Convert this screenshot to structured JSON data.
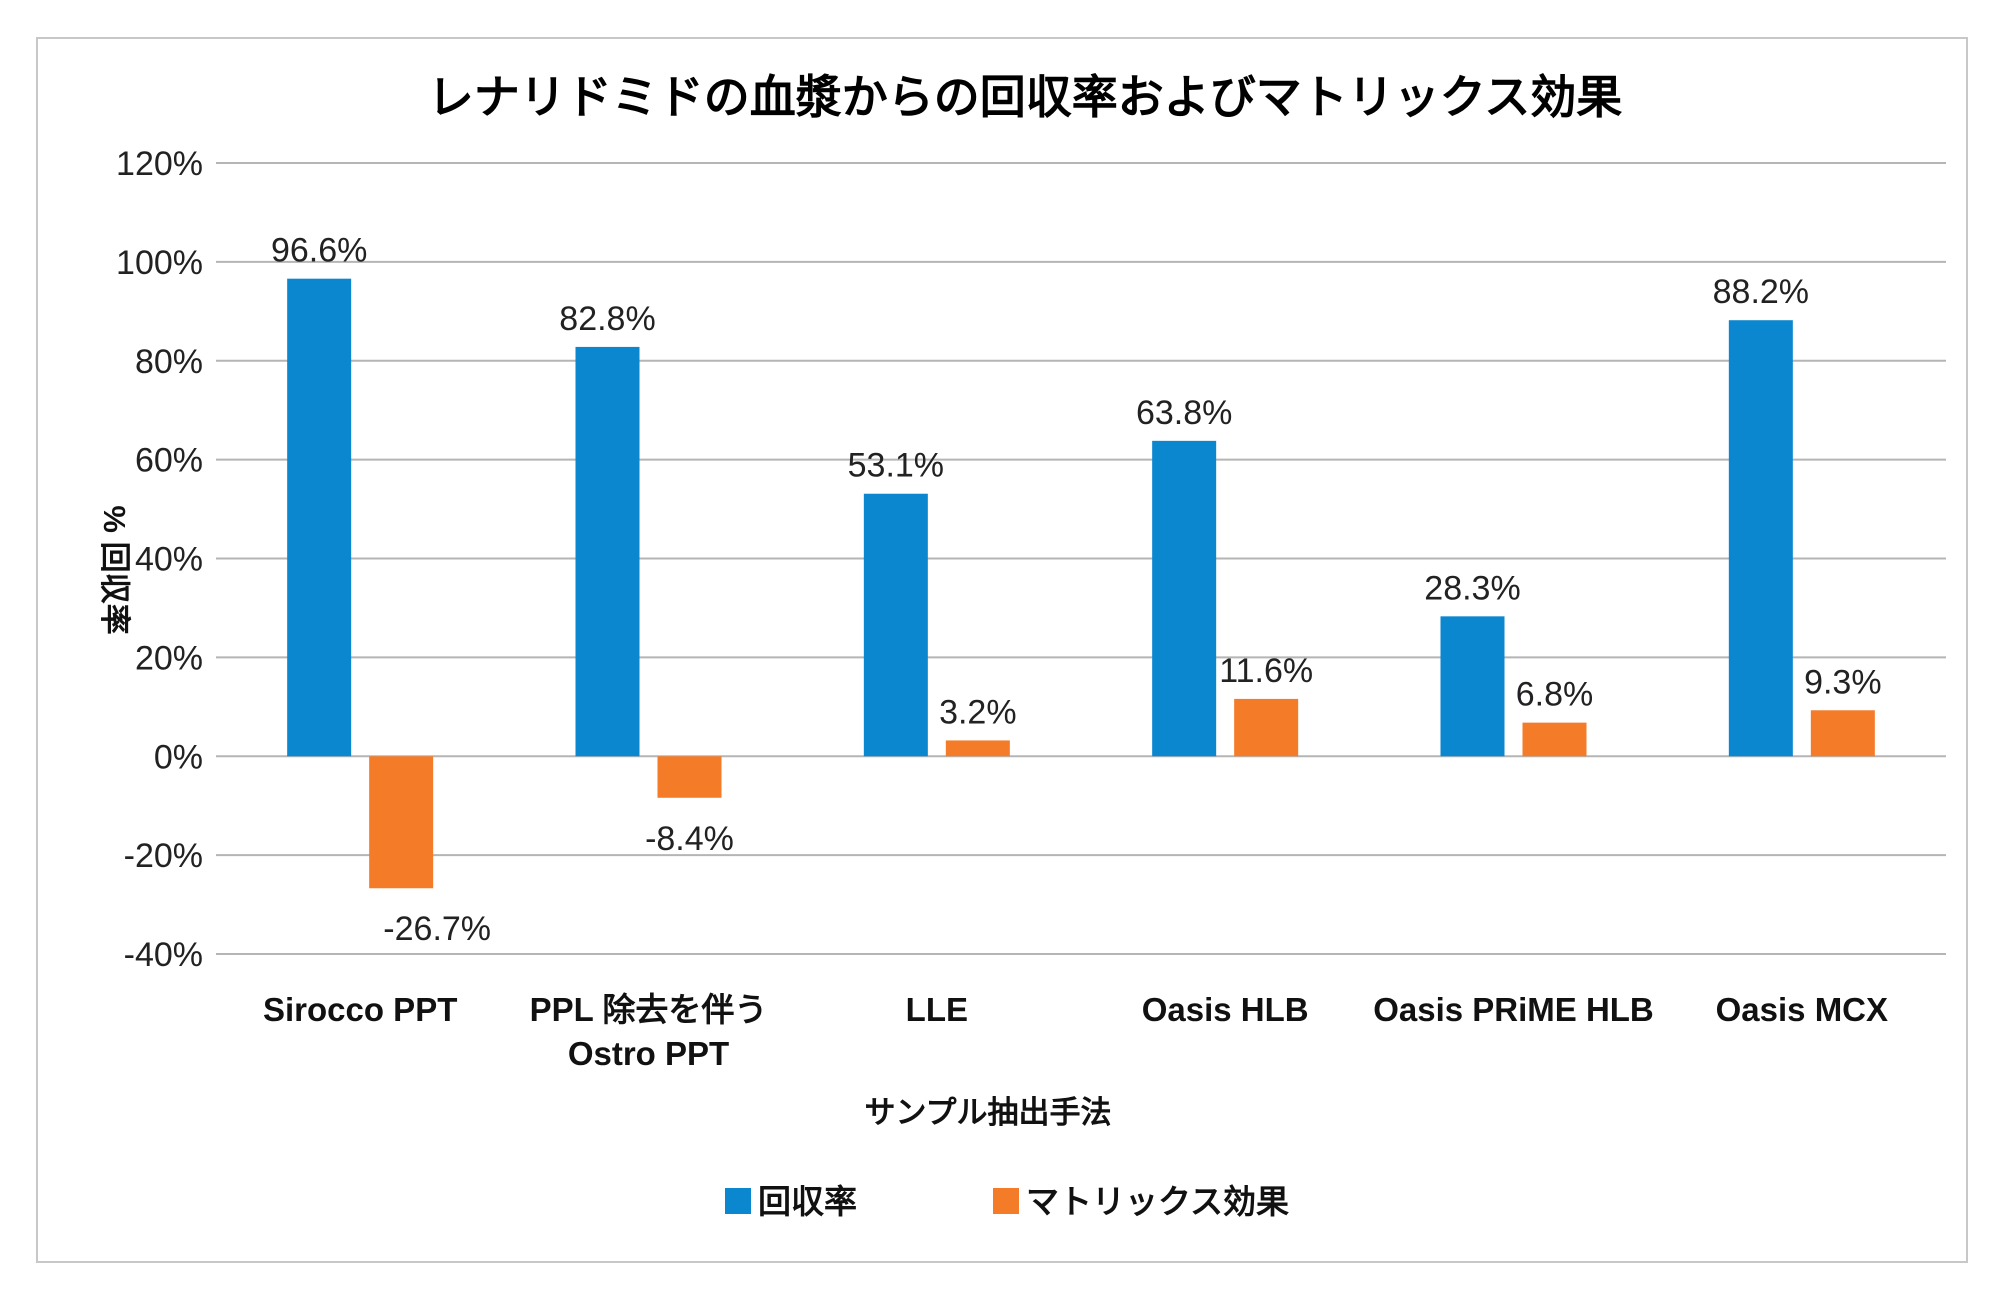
{
  "chart_data": {
    "type": "bar",
    "title": "レナリドミドの血漿からの回収率およびマトリックス効果",
    "xlabel": "サンプル抽出手法",
    "ylabel": "% 回収率",
    "ylim": [
      -40,
      120
    ],
    "yticks": [
      -40,
      -20,
      0,
      20,
      40,
      60,
      80,
      100,
      120
    ],
    "tick_suffix": "%",
    "grid": true,
    "legend_position": "bottom",
    "categories": [
      [
        "Sirocco PPT"
      ],
      [
        "PPL 除去を伴う",
        "Ostro PPT"
      ],
      [
        "LLE"
      ],
      [
        "Oasis HLB"
      ],
      [
        "Oasis PRiME HLB"
      ],
      [
        "Oasis MCX"
      ]
    ],
    "series": [
      {
        "name": "回収率",
        "color": "#0A87CF",
        "values": [
          96.6,
          82.8,
          53.1,
          63.8,
          28.3,
          88.2
        ],
        "labels": [
          "96.6%",
          "82.8%",
          "53.1%",
          "63.8%",
          "28.3%",
          "88.2%"
        ]
      },
      {
        "name": "マトリックス効果",
        "color": "#F47B27",
        "values": [
          -26.7,
          -8.4,
          3.2,
          11.6,
          6.8,
          9.3
        ],
        "labels": [
          "-26.7%",
          "-8.4%",
          "3.2%",
          "11.6%",
          "6.8%",
          "9.3%"
        ]
      }
    ]
  }
}
